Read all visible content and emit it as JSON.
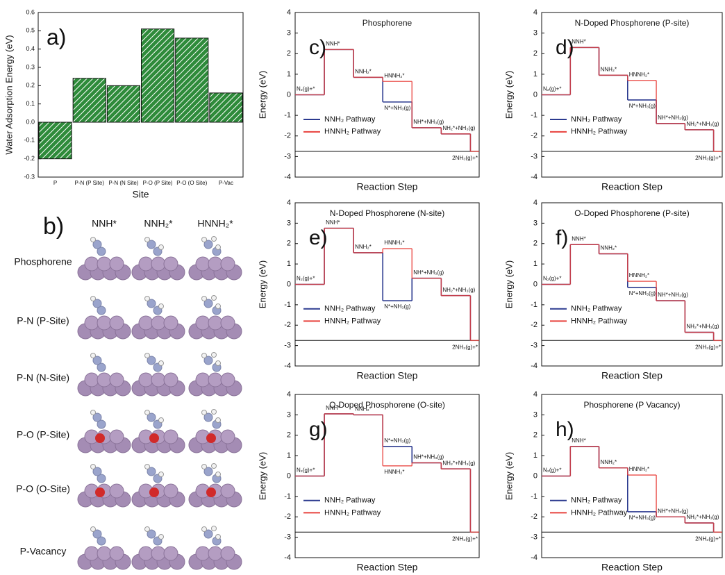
{
  "chart_data": [
    {
      "type": "bar",
      "panel_label": "a)",
      "ylabel": "Water Adsorption Energy (eV)",
      "xlabel": "Site",
      "categories": [
        "P",
        "P-N (P Site)",
        "P-N (N Site)",
        "P-O (P Site)",
        "P-O (O Site)",
        "P-Vac"
      ],
      "values": [
        -0.2,
        0.24,
        0.2,
        0.51,
        0.46,
        0.16
      ],
      "color": "#2e8b3a",
      "ylim": [
        -0.3,
        0.6
      ],
      "yticks": [
        -0.3,
        -0.2,
        -0.1,
        {
          "value": 0,
          "label": "0.0"
        },
        0.1,
        0.2,
        0.3,
        0.4,
        0.5,
        0.6
      ]
    },
    {
      "type": "step",
      "panel_label": "c)",
      "title": "Phosphorene",
      "xlabel": "Reaction Step",
      "ylabel": "Energy (eV)",
      "ylim": [
        -4,
        4
      ],
      "yticks": [
        -4,
        -3,
        -2,
        -1,
        0,
        1,
        2,
        3,
        4
      ],
      "series": [
        {
          "name": "NNH₂ Pathway",
          "color": "#2b3a8f",
          "values": [
            0,
            2.2,
            0.85,
            -0.35,
            -1.6,
            -1.9,
            -2.75
          ],
          "labels": [
            "N₂(g)+*",
            "NNH*",
            "NNH₂*",
            "N*+NH₃(g)",
            "NH*+NH₃(g)",
            "NH₂*+NH₃(g)",
            "2NH₃(g)+*"
          ]
        },
        {
          "name": "HNNH₂ Pathway",
          "color": "#e8413c",
          "values": [
            0,
            2.2,
            0.85,
            0.65,
            -1.6,
            -1.9,
            -2.75
          ],
          "labels": [
            null,
            null,
            null,
            "HNNH₂*",
            null,
            null,
            null
          ]
        }
      ]
    },
    {
      "type": "step",
      "panel_label": "d)",
      "title": "N-Doped Phosphorene (P-site)",
      "xlabel": "Reaction Step",
      "ylabel": "Energy (eV)",
      "ylim": [
        -4,
        4
      ],
      "yticks": [
        -4,
        -3,
        -2,
        -1,
        0,
        1,
        2,
        3,
        4
      ],
      "series": [
        {
          "name": "NNH₂ Pathway",
          "color": "#2b3a8f",
          "values": [
            0,
            2.3,
            0.95,
            -0.25,
            -1.4,
            -1.7,
            -2.75
          ],
          "labels": [
            "N₂(g)+*",
            "NNH*",
            "NNH₂*",
            "N*+NH₃(g)",
            "NH*+NH₃(g)",
            "NH₂*+NH₃(g)",
            "2NH₃(g)+*"
          ]
        },
        {
          "name": "HNNH₂ Pathway",
          "color": "#e8413c",
          "values": [
            0,
            2.3,
            0.95,
            0.7,
            -1.4,
            -1.7,
            -2.75
          ],
          "labels": [
            null,
            null,
            null,
            "HNNH₂*",
            null,
            null,
            null
          ]
        }
      ]
    },
    {
      "type": "step",
      "panel_label": "e)",
      "title": "N-Doped Phosphorene (N-site)",
      "xlabel": "Reaction Step",
      "ylabel": "Energy (eV)",
      "ylim": [
        -4,
        4
      ],
      "yticks": [
        -4,
        -3,
        -2,
        -1,
        0,
        1,
        2,
        3,
        4
      ],
      "series": [
        {
          "name": "NNH₂ Pathway",
          "color": "#2b3a8f",
          "values": [
            0,
            2.75,
            1.55,
            -0.8,
            0.3,
            -0.55,
            -2.75
          ],
          "labels": [
            "N₂(g)+*",
            "NNH*",
            "NNH₂*",
            "N*+NH₃(g)",
            "NH*+NH₃(g)",
            "NH₂*+NH₃(g)",
            "2NH₃(g)+*"
          ]
        },
        {
          "name": "HNNH₂ Pathway",
          "color": "#e8413c",
          "values": [
            0,
            2.75,
            1.55,
            1.75,
            0.3,
            -0.55,
            -2.75
          ],
          "labels": [
            null,
            null,
            null,
            "HNNH₂*",
            null,
            null,
            null
          ]
        }
      ]
    },
    {
      "type": "step",
      "panel_label": "f)",
      "title": "O-Doped Phosphorene (P-site)",
      "xlabel": "Reaction Step",
      "ylabel": "Energy (eV)",
      "ylim": [
        -4,
        4
      ],
      "yticks": [
        -4,
        -3,
        -2,
        -1,
        0,
        1,
        2,
        3,
        4
      ],
      "series": [
        {
          "name": "NNH₂ Pathway",
          "color": "#2b3a8f",
          "values": [
            0,
            1.95,
            1.5,
            -0.15,
            -0.8,
            -2.35,
            -2.75
          ],
          "labels": [
            "N₂(g)+*",
            "NNH*",
            "NNH₂*",
            "N*+NH₃(g)",
            "NH*+NH₃(g)",
            "NH₂*+NH₃(g)",
            "2NH₃(g)+*"
          ]
        },
        {
          "name": "HNNH₂ Pathway",
          "color": "#e8413c",
          "values": [
            0,
            1.95,
            1.5,
            0.15,
            -0.8,
            -2.35,
            -2.75
          ],
          "labels": [
            null,
            null,
            null,
            "HNNH₂*",
            null,
            null,
            null
          ]
        }
      ]
    },
    {
      "type": "step",
      "panel_label": "g)",
      "title": "O-Doped Phosphorene (O-site)",
      "xlabel": "Reaction Step",
      "ylabel": "Energy (eV)",
      "ylim": [
        -4,
        4
      ],
      "yticks": [
        -4,
        -3,
        -2,
        -1,
        0,
        1,
        2,
        3,
        4
      ],
      "series": [
        {
          "name": "NNH₂ Pathway",
          "color": "#2b3a8f",
          "values": [
            0,
            3.05,
            3.0,
            1.45,
            0.65,
            0.35,
            -2.75
          ],
          "labels": [
            "N₂(g)+*",
            "NNH*",
            "NNH₂*",
            "N*+NH₃(g)",
            "NH*+NH₃(g)",
            "NH₂*+NH₃(g)",
            "2NH₃(g)+*"
          ]
        },
        {
          "name": "HNNH₂ Pathway",
          "color": "#e8413c",
          "values": [
            0,
            3.05,
            3.0,
            0.5,
            0.65,
            0.35,
            -2.75
          ],
          "labels": [
            null,
            null,
            null,
            "HNNH₂*",
            null,
            null,
            null
          ]
        }
      ]
    },
    {
      "type": "step",
      "panel_label": "h)",
      "title": "Phosphorene (P Vacancy)",
      "xlabel": "Reaction Step",
      "ylabel": "Energy (eV)",
      "ylim": [
        -4,
        4
      ],
      "yticks": [
        -4,
        -3,
        -2,
        -1,
        0,
        1,
        2,
        3,
        4
      ],
      "series": [
        {
          "name": "NNH₂ Pathway",
          "color": "#2b3a8f",
          "values": [
            0,
            1.45,
            0.4,
            -1.75,
            -2.0,
            -2.3,
            -2.75
          ],
          "labels": [
            "N₂(g)+*",
            "NNH*",
            "NNH₂*",
            "N*+NH₃(g)",
            "NH*+NH₃(g)",
            "NH₂*+NH₃(g)",
            "2NH₃(g)+*"
          ]
        },
        {
          "name": "HNNH₂ Pathway",
          "color": "#e8413c",
          "values": [
            0,
            1.45,
            0.4,
            0.05,
            -2.0,
            -2.3,
            -2.75
          ],
          "labels": [
            null,
            null,
            null,
            "HNNH₂*",
            null,
            null,
            null
          ]
        }
      ]
    }
  ],
  "panel_b": {
    "panel_label": "b)",
    "columns": [
      "NNH*",
      "NNH₂*",
      "HNNH₂*"
    ],
    "rows": [
      "Phosphorene",
      "P-N (P-Site)",
      "P-N (N-Site)",
      "P-O (P-Site)",
      "P-O (O-Site)",
      "P-Vacancy"
    ]
  }
}
